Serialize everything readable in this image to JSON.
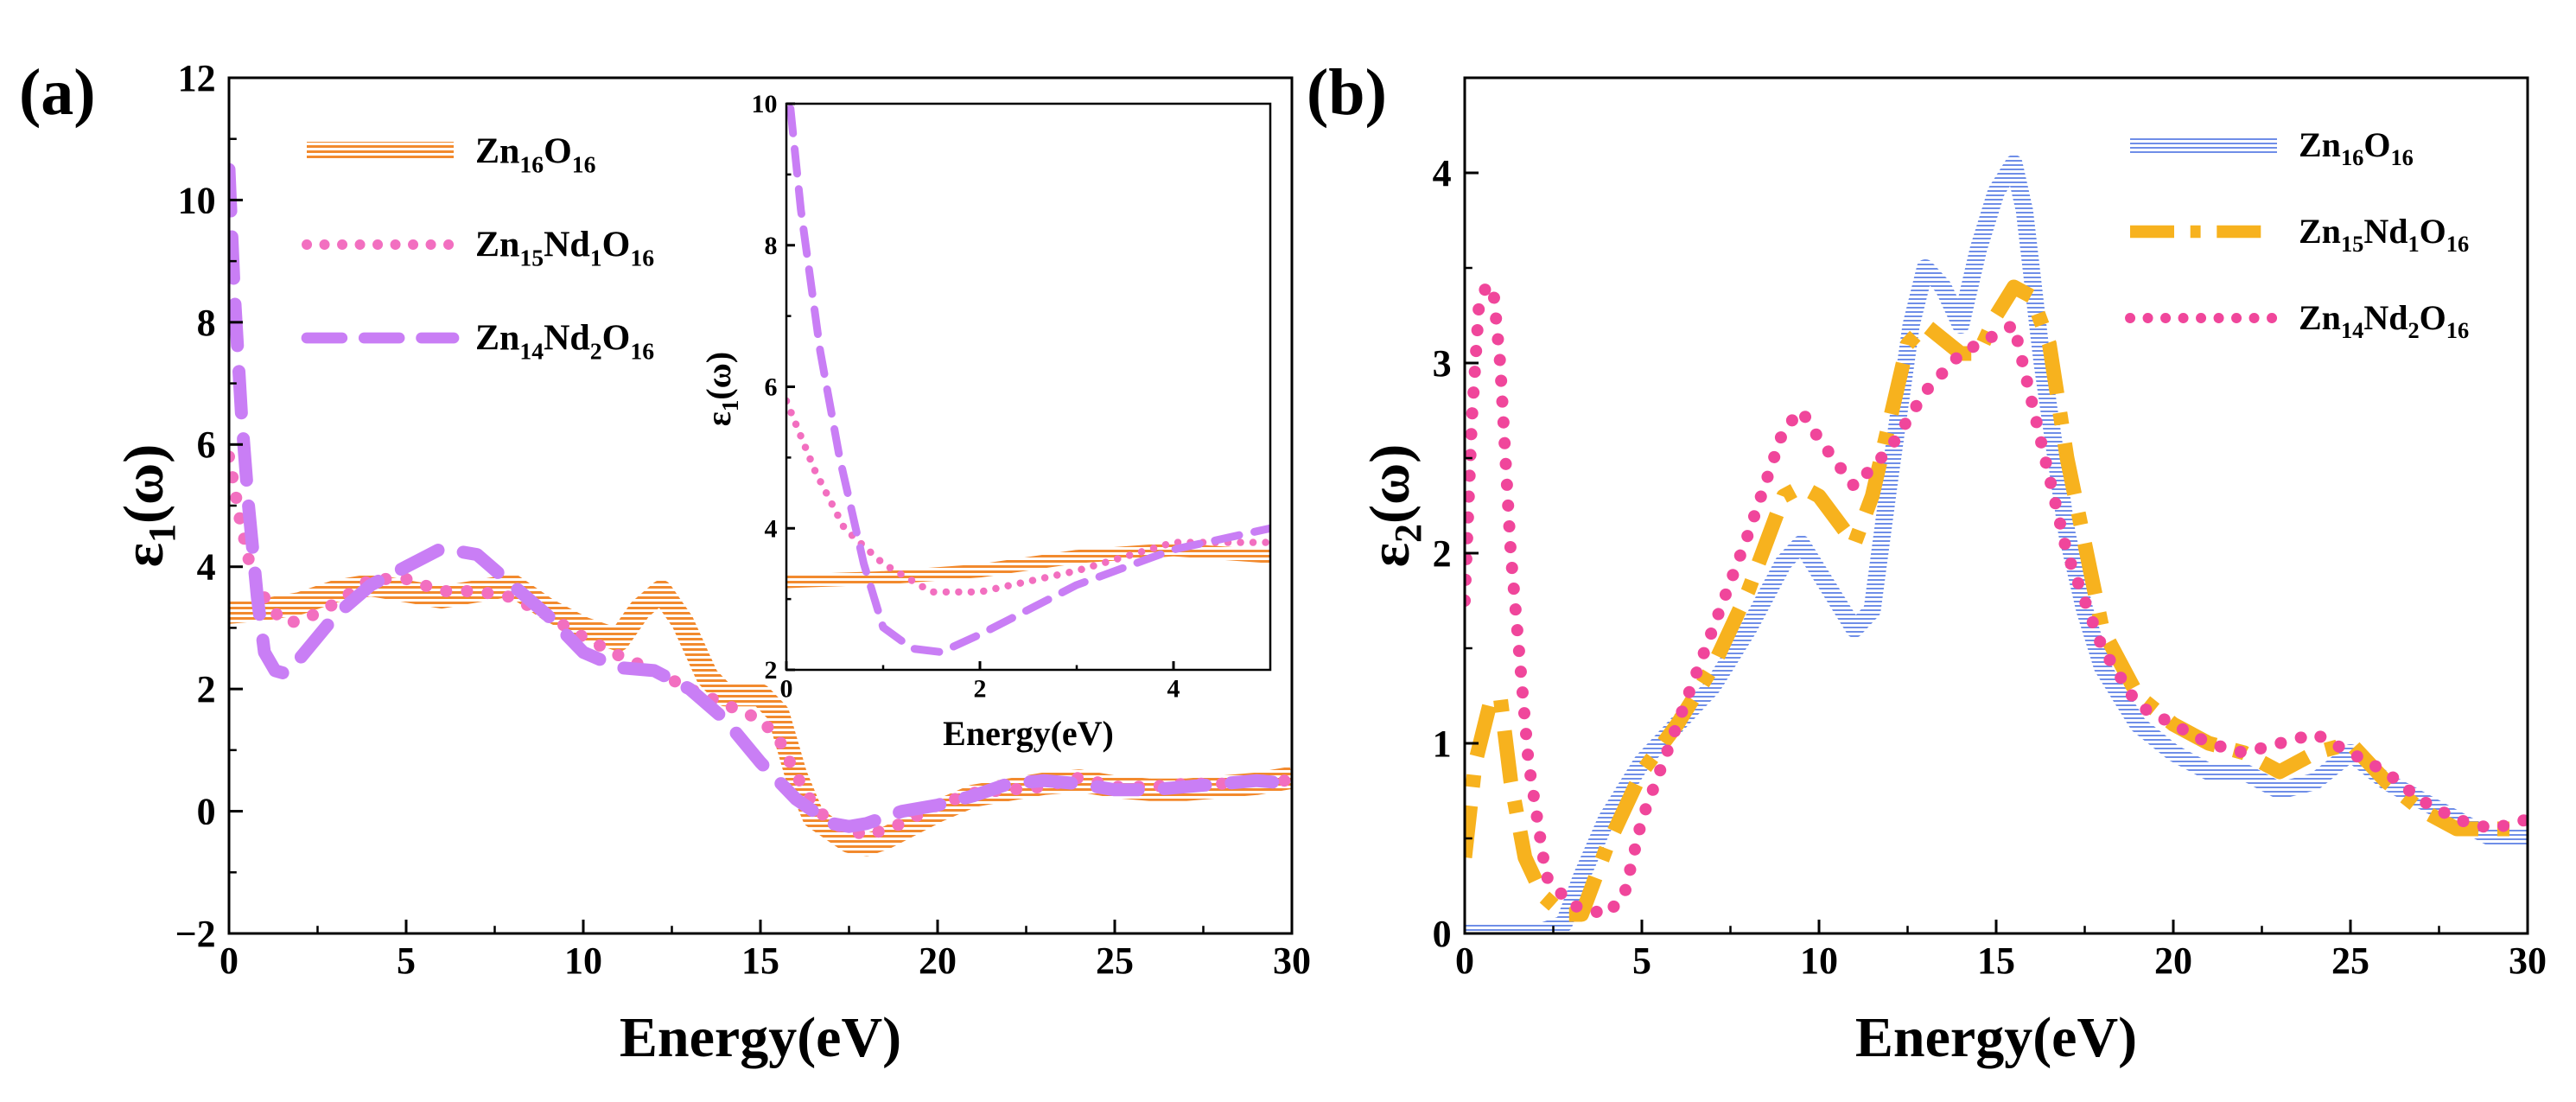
{
  "chart_data": [
    {
      "type": "line",
      "panel": "(a)",
      "title": "",
      "xlabel": "Energy(eV)",
      "ylabel_base": "ε",
      "ylabel_sub": "1",
      "ylabel_rest": "(ω)",
      "xlim": [
        0,
        30
      ],
      "ylim": [
        -2,
        12
      ],
      "xticks": [
        0,
        5,
        10,
        15,
        20,
        25,
        30
      ],
      "yticks": [
        -2,
        0,
        2,
        4,
        6,
        8,
        10,
        12
      ],
      "grid": false,
      "legend_position": "top-left",
      "series": [
        {
          "name": "Zn16O16",
          "legend_parts": [
            [
              "Zn",
              ""
            ],
            [
              "16",
              "sub"
            ],
            [
              "O",
              ""
            ],
            [
              "16",
              "sub"
            ]
          ],
          "color": "#f28a2e",
          "style": "hatched-band",
          "x": [
            0,
            1,
            2,
            3,
            4,
            5,
            6,
            7,
            8,
            9,
            10,
            11,
            11.6,
            12.2,
            12.8,
            13.5,
            14,
            15,
            15.5,
            16,
            16.5,
            17,
            17.5,
            18,
            18.5,
            19,
            20,
            21,
            22,
            23,
            24,
            25,
            26,
            27,
            28,
            29,
            30
          ],
          "y": [
            3.25,
            3.3,
            3.4,
            3.6,
            3.7,
            3.6,
            3.5,
            3.6,
            3.7,
            3.3,
            3.0,
            2.8,
            3.3,
            3.6,
            3.1,
            2.2,
            1.9,
            1.9,
            1.6,
            0.6,
            -0.1,
            -0.3,
            -0.5,
            -0.55,
            -0.45,
            -0.3,
            0.0,
            0.25,
            0.35,
            0.45,
            0.5,
            0.4,
            0.35,
            0.35,
            0.4,
            0.45,
            0.55
          ]
        },
        {
          "name": "Zn15Nd1O16",
          "legend_parts": [
            [
              "Zn",
              ""
            ],
            [
              "15",
              "sub"
            ],
            [
              "Nd",
              ""
            ],
            [
              "1",
              "sub"
            ],
            [
              "O",
              ""
            ],
            [
              "16",
              "sub"
            ]
          ],
          "color": "#f26fc0",
          "style": "dotted",
          "x": [
            0,
            0.3,
            0.6,
            1,
            1.5,
            2,
            3,
            4,
            5,
            6,
            7,
            8,
            9,
            10,
            11,
            12,
            13,
            14,
            15,
            15.5,
            16,
            16.5,
            17,
            18,
            19,
            20,
            21,
            22,
            23,
            24,
            25,
            26,
            27,
            28,
            29,
            30
          ],
          "y": [
            5.8,
            4.8,
            4.0,
            3.5,
            3.1,
            3.1,
            3.4,
            3.8,
            3.8,
            3.6,
            3.6,
            3.5,
            3.2,
            2.85,
            2.55,
            2.3,
            2.0,
            1.75,
            1.5,
            1.2,
            0.6,
            0.1,
            -0.2,
            -0.4,
            -0.2,
            0.1,
            0.3,
            0.35,
            0.4,
            0.55,
            0.4,
            0.4,
            0.45,
            0.45,
            0.5,
            0.5
          ]
        },
        {
          "name": "Zn14Nd2O16",
          "legend_parts": [
            [
              "Zn",
              ""
            ],
            [
              "14",
              "sub"
            ],
            [
              "Nd",
              ""
            ],
            [
              "2",
              "sub"
            ],
            [
              "O",
              ""
            ],
            [
              "16",
              "sub"
            ]
          ],
          "color": "#c97ef5",
          "style": "dashed",
          "x": [
            0,
            0.15,
            0.35,
            0.55,
            0.8,
            1.0,
            1.3,
            1.6,
            2,
            3,
            4,
            5,
            6,
            7,
            8,
            9,
            10,
            11,
            12,
            13,
            14,
            15,
            16,
            16.5,
            17,
            17.5,
            18,
            19,
            20,
            21,
            22,
            23,
            24,
            25,
            26,
            27,
            28,
            29,
            30
          ],
          "y": [
            10.5,
            8.5,
            6.5,
            5.0,
            3.5,
            2.6,
            2.3,
            2.25,
            2.5,
            3.2,
            3.7,
            4.0,
            4.3,
            4.2,
            3.7,
            3.2,
            2.6,
            2.35,
            2.3,
            2.0,
            1.5,
            0.8,
            0.2,
            0.0,
            -0.2,
            -0.25,
            -0.2,
            0.0,
            0.1,
            0.25,
            0.45,
            0.5,
            0.45,
            0.35,
            0.35,
            0.4,
            0.45,
            0.5,
            0.45
          ]
        }
      ],
      "inset": {
        "xlabel": "Energy(eV)",
        "ylabel_base": "ε",
        "ylabel_sub": "1",
        "ylabel_rest": "(ω)",
        "xlim": [
          0,
          5
        ],
        "ylim": [
          2,
          10
        ],
        "xticks": [
          0,
          2,
          4
        ],
        "yticks": [
          2,
          4,
          6,
          8,
          10
        ]
      }
    },
    {
      "type": "line",
      "panel": "(b)",
      "title": "",
      "xlabel": "Energy(eV)",
      "ylabel_base": "ε",
      "ylabel_sub": "2",
      "ylabel_rest": "(ω)",
      "xlim": [
        0,
        30
      ],
      "ylim": [
        0,
        4.5
      ],
      "xticks": [
        0,
        5,
        10,
        15,
        20,
        25,
        30
      ],
      "yticks": [
        0,
        1,
        2,
        3,
        4
      ],
      "grid": false,
      "legend_position": "top-right",
      "series": [
        {
          "name": "Zn16O16",
          "legend_parts": [
            [
              "Zn",
              ""
            ],
            [
              "16",
              "sub"
            ],
            [
              "O",
              ""
            ],
            [
              "16",
              "sub"
            ]
          ],
          "color": "#6f8ee8",
          "style": "hatched-band",
          "x": [
            0,
            1,
            2,
            2.8,
            3.3,
            4,
            5,
            6,
            7,
            8,
            9,
            9.5,
            10,
            11,
            11.5,
            12,
            12.6,
            13,
            13.5,
            14,
            14.5,
            15,
            15.5,
            15.8,
            16.3,
            17,
            17.5,
            18,
            19,
            20,
            21,
            22,
            23,
            24,
            25,
            26,
            27,
            28,
            29,
            30
          ],
          "y": [
            0.0,
            0.0,
            0.0,
            0.05,
            0.3,
            0.6,
            0.9,
            1.1,
            1.3,
            1.6,
            1.95,
            2.05,
            1.9,
            1.6,
            1.7,
            2.4,
            3.2,
            3.5,
            3.4,
            3.2,
            3.6,
            3.9,
            4.05,
            3.8,
            3.0,
            2.1,
            1.7,
            1.4,
            1.1,
            0.95,
            0.85,
            0.85,
            0.75,
            0.8,
            0.95,
            0.8,
            0.7,
            0.6,
            0.5,
            0.5
          ]
        },
        {
          "name": "Zn15Nd1O16",
          "legend_parts": [
            [
              "Zn",
              ""
            ],
            [
              "15",
              "sub"
            ],
            [
              "Nd",
              ""
            ],
            [
              "1",
              "sub"
            ],
            [
              "O",
              ""
            ],
            [
              "16",
              "sub"
            ]
          ],
          "color": "#f7b21e",
          "style": "dash-dot",
          "x": [
            0,
            0.3,
            0.7,
            1.0,
            1.3,
            1.7,
            2.2,
            2.8,
            3.3,
            4,
            5,
            6,
            7,
            8,
            9,
            9.5,
            10,
            11,
            11.5,
            12,
            12.5,
            13,
            14,
            14.5,
            15,
            15.5,
            16,
            16.5,
            17,
            18,
            19,
            20,
            21,
            22,
            23,
            24,
            25,
            26,
            27,
            28,
            29,
            30
          ],
          "y": [
            0.4,
            0.9,
            1.2,
            1.25,
            0.8,
            0.4,
            0.2,
            0.1,
            0.1,
            0.45,
            0.85,
            1.1,
            1.4,
            1.8,
            2.3,
            2.35,
            2.3,
            2.05,
            2.3,
            2.7,
            3.1,
            3.2,
            3.05,
            3.05,
            3.25,
            3.4,
            3.35,
            3.1,
            2.5,
            1.6,
            1.25,
            1.1,
            1.0,
            0.95,
            0.85,
            0.95,
            1.0,
            0.8,
            0.65,
            0.55,
            0.55,
            0.55
          ]
        },
        {
          "name": "Zn14Nd2O16",
          "legend_parts": [
            [
              "Zn",
              ""
            ],
            [
              "14",
              "sub"
            ],
            [
              "Nd",
              ""
            ],
            [
              "2",
              "sub"
            ],
            [
              "O",
              ""
            ],
            [
              "16",
              "sub"
            ]
          ],
          "color": "#f0469b",
          "style": "dotted",
          "x": [
            0,
            0.2,
            0.4,
            0.6,
            0.8,
            1.0,
            1.3,
            1.8,
            2.3,
            3,
            4,
            4.5,
            5,
            6,
            7,
            8,
            9,
            9.5,
            10,
            11,
            12,
            13,
            14,
            15,
            15.5,
            16,
            17,
            18,
            19,
            20,
            21,
            22,
            23,
            24,
            25,
            26,
            27,
            28,
            29,
            30
          ],
          "y": [
            1.75,
            2.7,
            3.3,
            3.4,
            3.4,
            3.0,
            2.0,
            0.9,
            0.3,
            0.15,
            0.1,
            0.2,
            0.6,
            1.1,
            1.6,
            2.1,
            2.65,
            2.75,
            2.6,
            2.35,
            2.55,
            2.85,
            3.05,
            3.15,
            3.2,
            2.8,
            2.0,
            1.5,
            1.2,
            1.1,
            1.0,
            0.95,
            1.0,
            1.05,
            0.95,
            0.85,
            0.7,
            0.6,
            0.55,
            0.6
          ]
        }
      ]
    }
  ]
}
